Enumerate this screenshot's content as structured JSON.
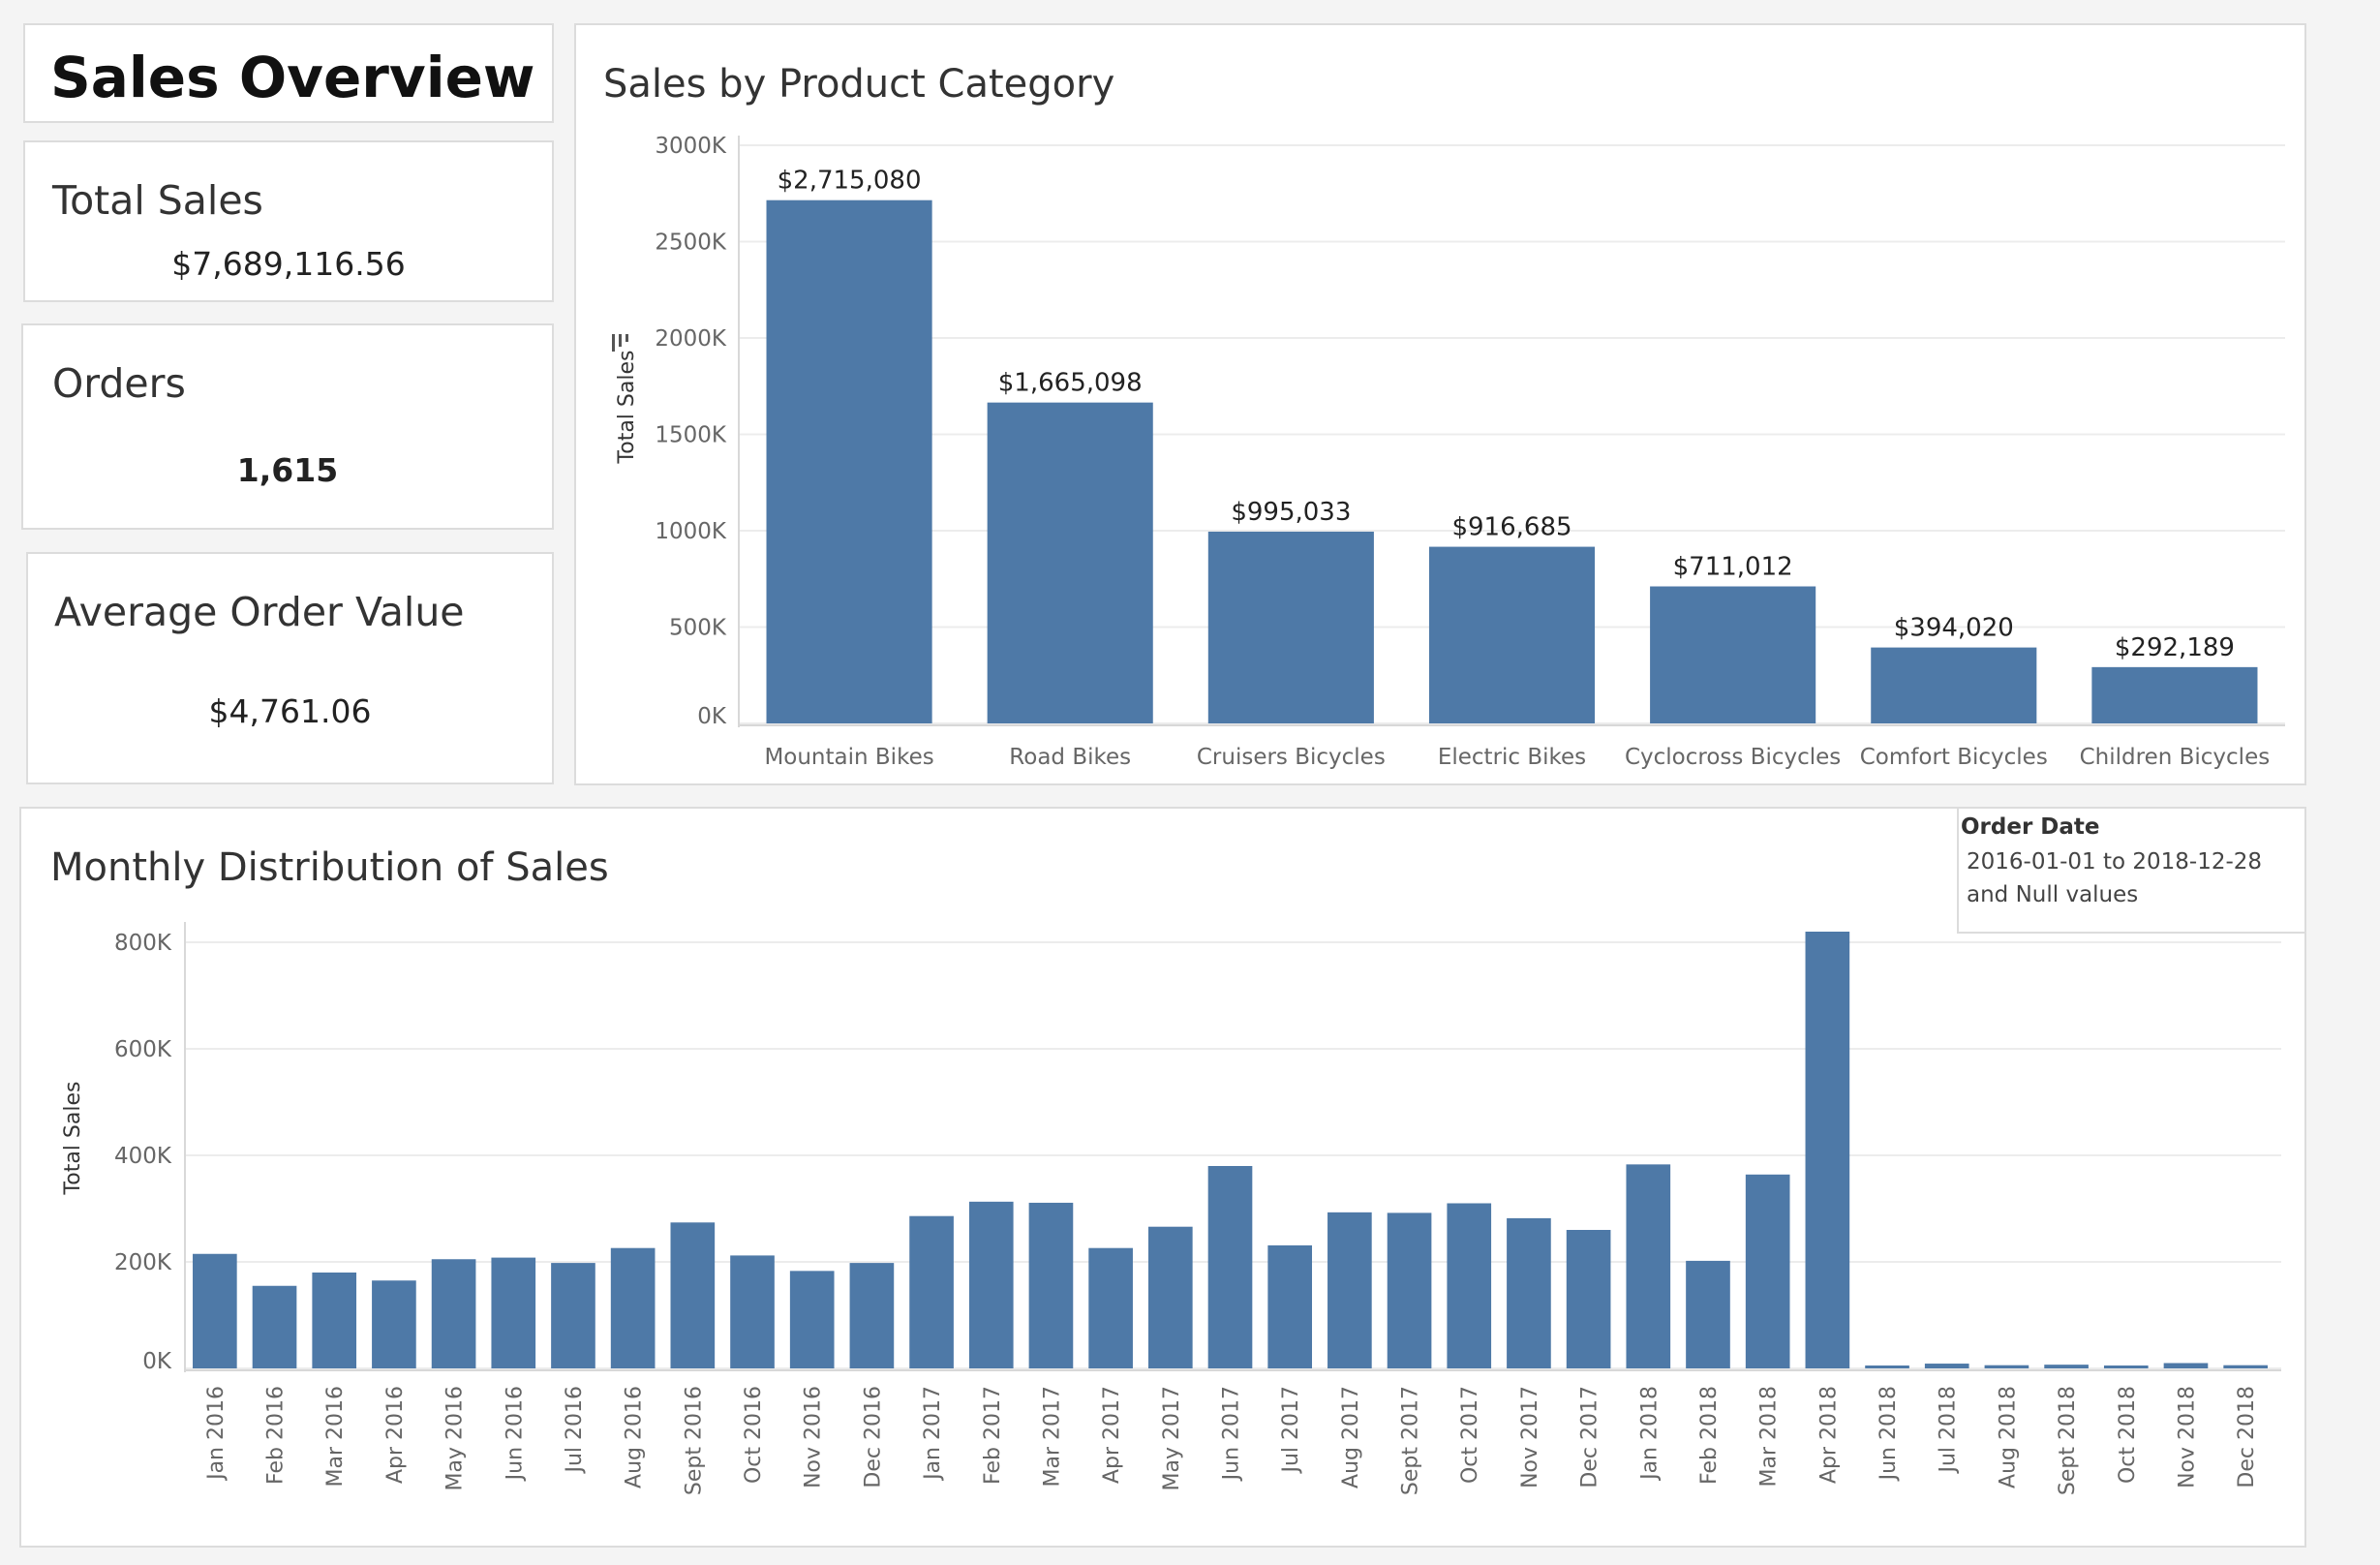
{
  "dashboard": {
    "title": "Sales Overview"
  },
  "kpis": {
    "total_sales": {
      "label": "Total Sales",
      "value": "$7,689,116.56"
    },
    "orders": {
      "label": "Orders",
      "value": "1,615"
    },
    "avg_order_value": {
      "label": "Average Order Value",
      "value": "$4,761.06"
    }
  },
  "filter": {
    "title": "Order Date",
    "value": "2016-01-01 to 2018-12-28 and Null values"
  },
  "colors": {
    "bar": "#4e79a7",
    "grid": "#ececec",
    "axis_text": "#666666"
  },
  "chart_data": [
    {
      "type": "bar",
      "title": "Sales by Product Category",
      "xlabel": "",
      "ylabel": "Total Sales",
      "ylim": [
        0,
        3000000
      ],
      "yticks": [
        0,
        500000,
        1000000,
        1500000,
        2000000,
        2500000,
        3000000
      ],
      "ytick_labels": [
        "0K",
        "500K",
        "1000K",
        "1500K",
        "2000K",
        "2500K",
        "3000K"
      ],
      "categories": [
        "Mountain Bikes",
        "Road Bikes",
        "Cruisers Bicycles",
        "Electric Bikes",
        "Cyclocross Bicycles",
        "Comfort Bicycles",
        "Children Bicycles"
      ],
      "values": [
        2715080,
        1665098,
        995033,
        916685,
        711012,
        394020,
        292189
      ],
      "data_labels": [
        "$2,715,080",
        "$1,665,098",
        "$995,033",
        "$916,685",
        "$711,012",
        "$394,020",
        "$292,189"
      ],
      "sort_icon": "sort-descending-icon",
      "grid": true
    },
    {
      "type": "bar",
      "title": "Monthly Distribution of Sales",
      "xlabel": "",
      "ylabel": "Total Sales",
      "ylim": [
        0,
        820000
      ],
      "yticks": [
        0,
        200000,
        400000,
        600000,
        800000
      ],
      "ytick_labels": [
        "0K",
        "200K",
        "400K",
        "600K",
        "800K"
      ],
      "categories": [
        "Jan 2016",
        "Feb 2016",
        "Mar 2016",
        "Apr 2016",
        "May 2016",
        "Jun 2016",
        "Jul 2016",
        "Aug 2016",
        "Sept 2016",
        "Oct 2016",
        "Nov 2016",
        "Dec 2016",
        "Jan 2017",
        "Feb 2017",
        "Mar 2017",
        "Apr 2017",
        "May 2017",
        "Jun 2017",
        "Jul 2017",
        "Aug 2017",
        "Sept 2017",
        "Oct 2017",
        "Nov 2017",
        "Dec 2017",
        "Jan 2018",
        "Feb 2018",
        "Mar 2018",
        "Apr 2018",
        "Jun 2018",
        "Jul 2018",
        "Aug 2018",
        "Sept 2018",
        "Oct 2018",
        "Nov 2018",
        "Dec 2018"
      ],
      "values": [
        215000,
        155000,
        180000,
        165000,
        205000,
        208000,
        198000,
        226000,
        274000,
        212000,
        183000,
        198000,
        286000,
        313000,
        311000,
        226000,
        266000,
        380000,
        231000,
        293000,
        292000,
        310000,
        282000,
        260000,
        383000,
        202000,
        364000,
        820000,
        2000,
        9000,
        6000,
        7000,
        4000,
        10000,
        6000
      ],
      "grid": true
    }
  ]
}
